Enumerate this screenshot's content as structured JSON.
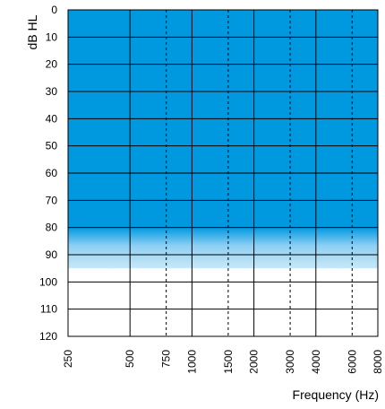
{
  "chart_data": {
    "type": "area",
    "title": "",
    "ylabel": "dB HL",
    "xlabel": "Frequency (Hz)",
    "y_ticks": [
      "0",
      "10",
      "20",
      "30",
      "40",
      "50",
      "60",
      "70",
      "80",
      "90",
      "100",
      "110",
      "120"
    ],
    "ylim": [
      0,
      120
    ],
    "y_reversed": true,
    "x_ticks": [
      "250",
      "500",
      "750",
      "1000",
      "1500",
      "2000",
      "3000",
      "4000",
      "6000",
      "8000"
    ],
    "x_scale": "log",
    "xlim": [
      250,
      8000
    ],
    "octave_frequencies": [
      250,
      500,
      1000,
      2000,
      4000,
      8000
    ],
    "interoctave_frequencies": [
      750,
      1500,
      3000,
      6000
    ],
    "grid": true,
    "shaded_region": {
      "from_db": 0,
      "solid_to_db": 80,
      "fade_to_db": 95,
      "color": "#0099e0",
      "fade_color": "#c8e8f8"
    },
    "series": []
  }
}
